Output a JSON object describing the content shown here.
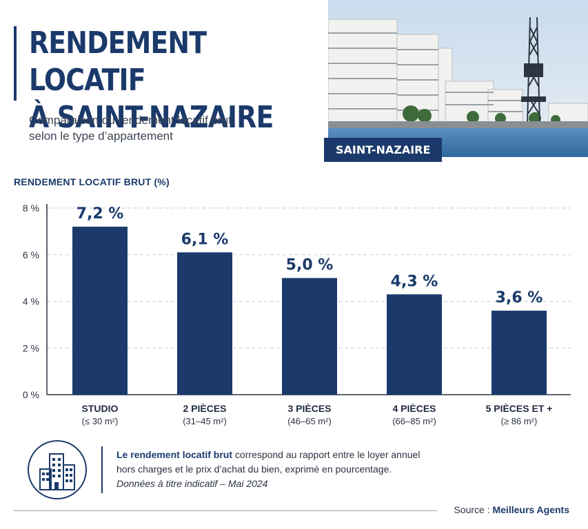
{
  "header": {
    "title_line1": "RENDEMENT LOCATIF",
    "title_line2": "À SAINT-NAZAIRE",
    "subtitle_line1": "Comparaison du rendement locatif brut",
    "subtitle_line2": "selon le type d’appartement"
  },
  "photo": {
    "city_tag": "SAINT-NAZAIRE"
  },
  "chart_data": {
    "type": "bar",
    "ylabel": "RENDEMENT LOCATIF BRUT (%)",
    "categories": [
      "STUDIO",
      "2 PIÈCES",
      "3 PIÈCES",
      "4 PIÈCES",
      "5 PIÈCES ET +"
    ],
    "category_sublabels": [
      "(≤ 30 m²)",
      "(31–45 m²)",
      "(46–65 m²)",
      "(66–85 m²)",
      "(≥ 86 m²)"
    ],
    "values": [
      7.2,
      6.1,
      5.0,
      4.3,
      3.6
    ],
    "value_labels": [
      "7,2 %",
      "6,1 %",
      "5,0 %",
      "4,3 %",
      "3,6 %"
    ],
    "ylim": [
      0,
      8
    ],
    "yticks": [
      0,
      2,
      4,
      6,
      8
    ],
    "ytick_labels": [
      "0 %",
      "2 %",
      "4 %",
      "6 %",
      "8 %"
    ],
    "grid": true,
    "bar_color": "#1b3a6b"
  },
  "note": {
    "bold": "Le rendement locatif brut",
    "text1": " correspond au rapport entre le loyer annuel",
    "text2": "hors charges et le prix d’achat du bien, exprimé en pourcentage.",
    "italic": "Données à titre indicatif – Mai 2024"
  },
  "footer": {
    "source_prefix": "Source : ",
    "source_name": "Meilleurs Agents"
  },
  "colors": {
    "primary": "#1b3a6b",
    "grid": "#c9ced6",
    "sky": "#d9e6f2",
    "water": "#3f7fb5"
  },
  "icons": {
    "note_icon": "buildings-icon"
  }
}
